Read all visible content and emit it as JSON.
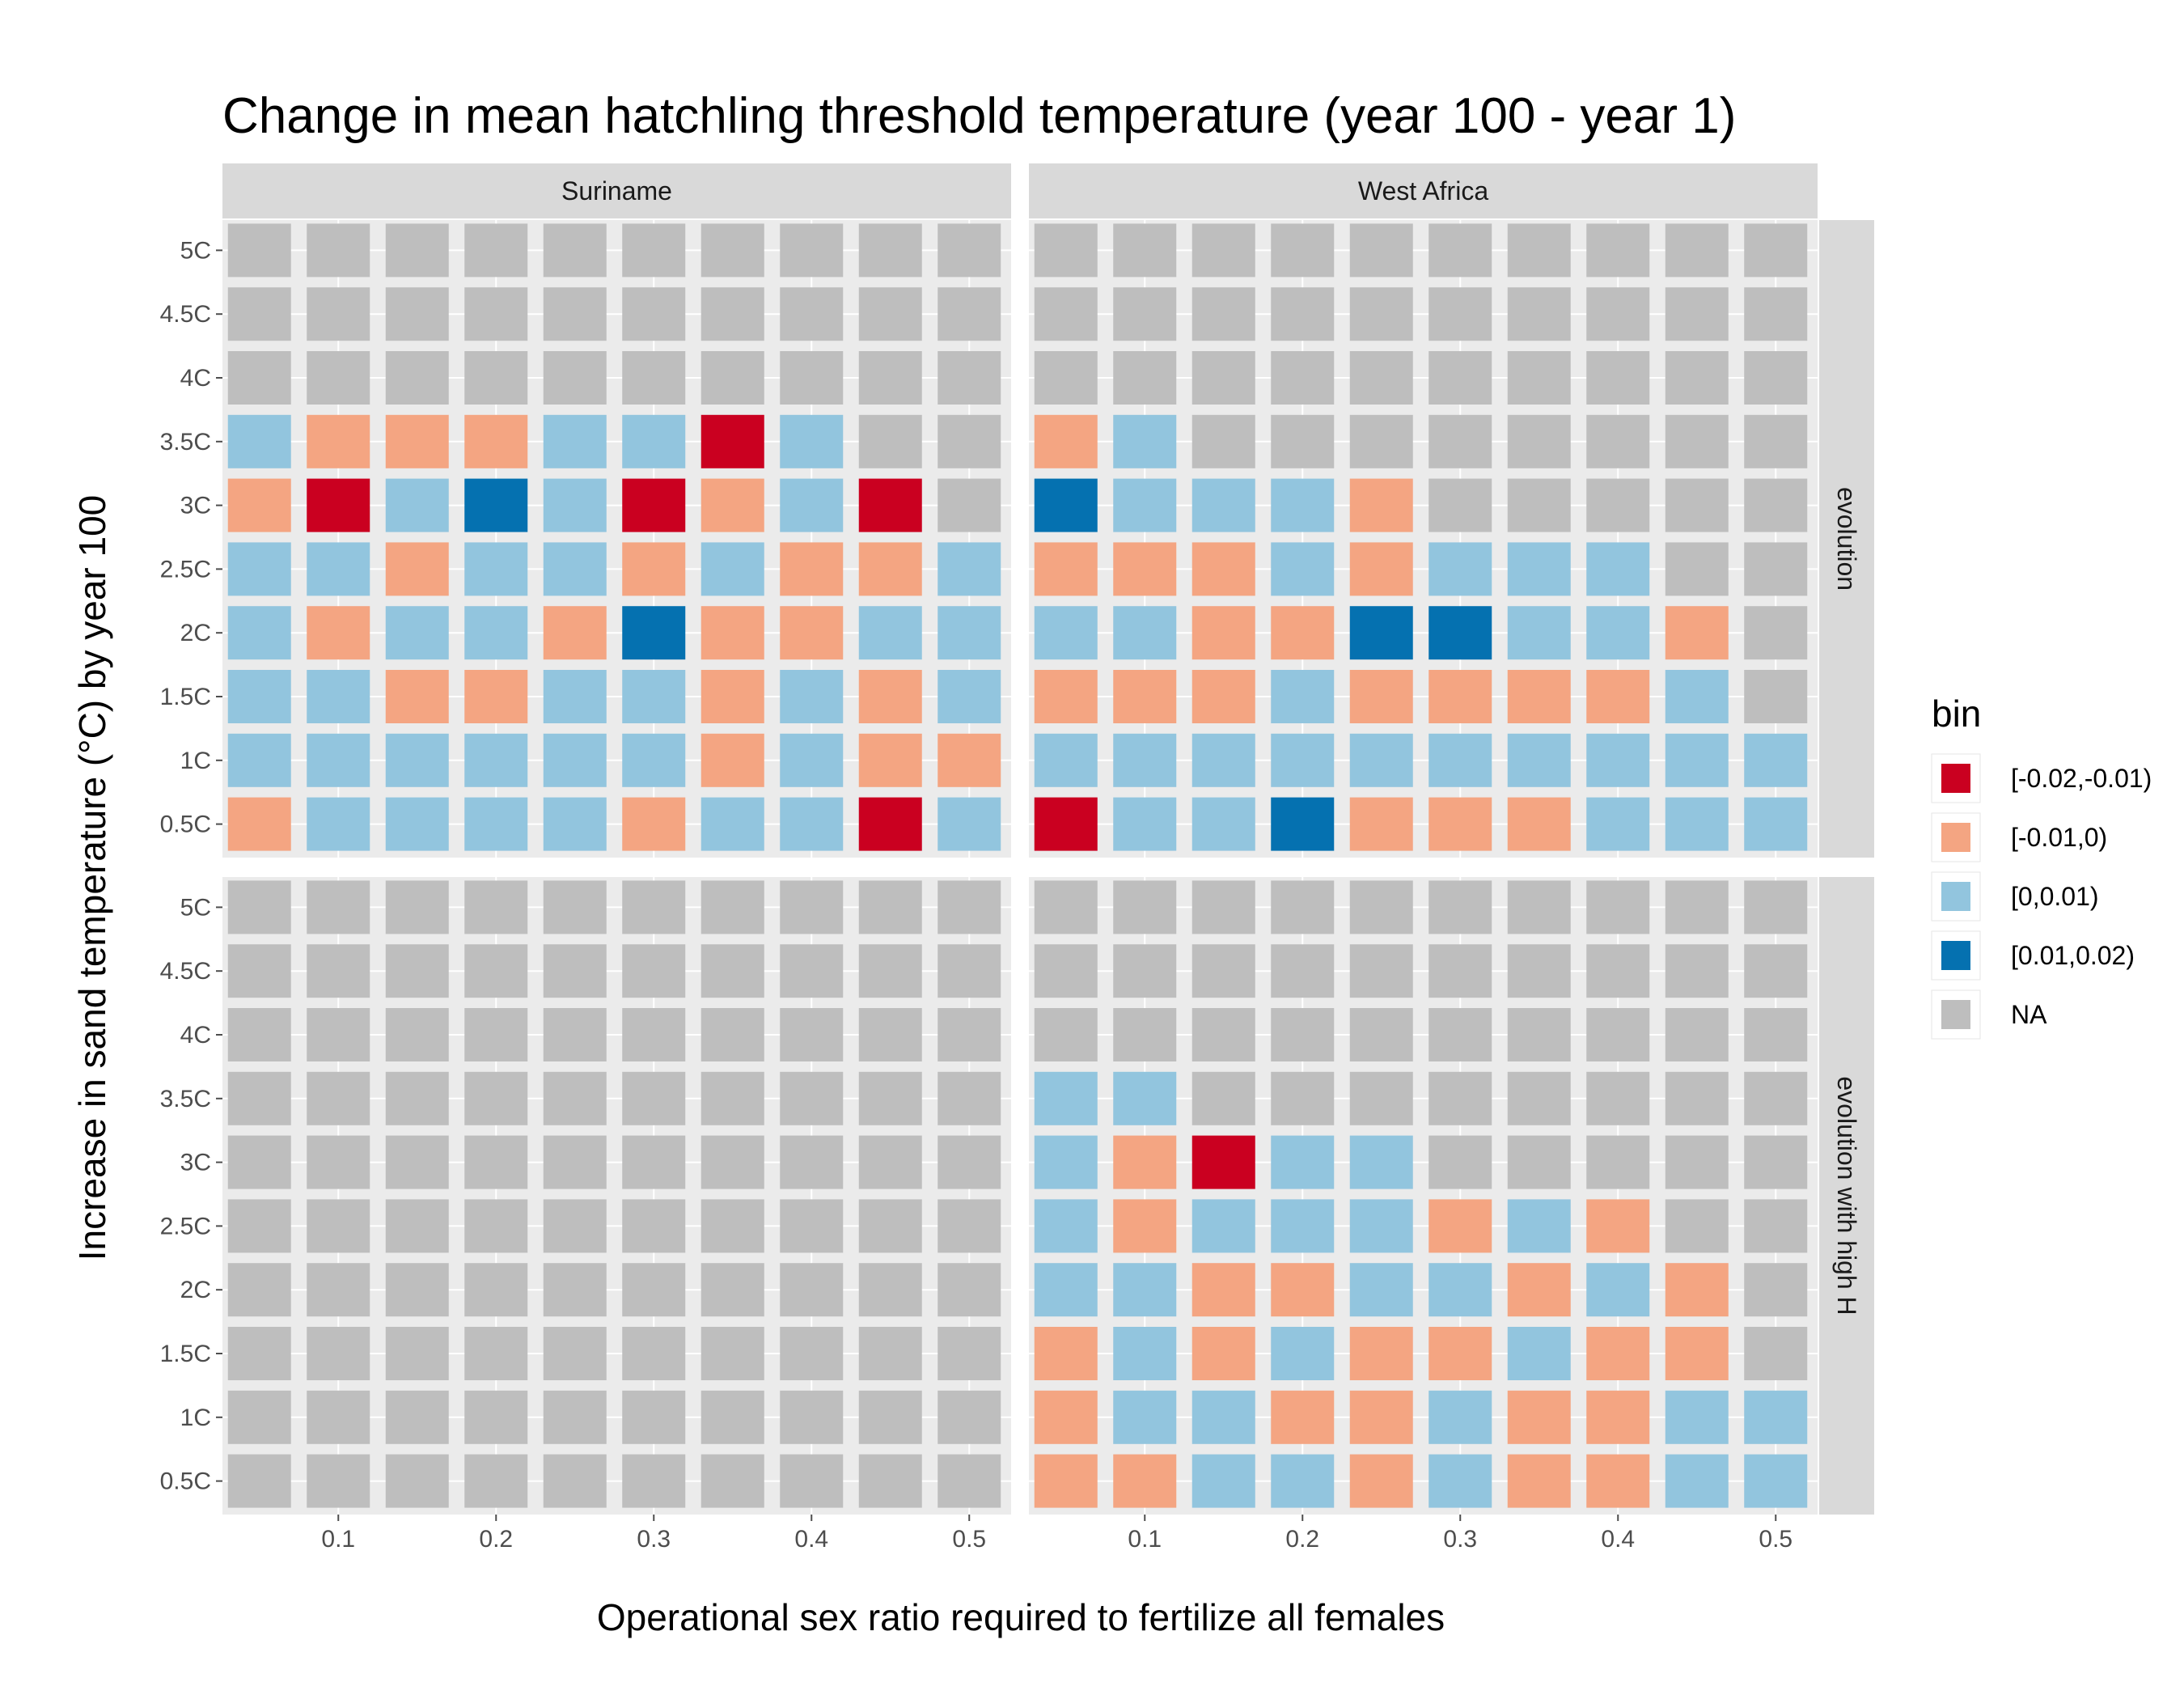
{
  "chart_data": {
    "type": "heatmap",
    "title": "Change in mean hatchling threshold temperature (year 100 - year 1)",
    "xlabel": "Operational sex ratio required to fertilize all females",
    "ylabel": "Increase in sand temperature (°C) by year 100",
    "x": [
      0.05,
      0.1,
      0.15,
      0.2,
      0.25,
      0.3,
      0.35,
      0.4,
      0.45,
      0.5
    ],
    "x_ticks": [
      0.1,
      0.2,
      0.3,
      0.4,
      0.5
    ],
    "x_tick_labels": [
      "0.1",
      "0.2",
      "0.3",
      "0.4",
      "0.5"
    ],
    "y_categories": [
      "0.5C",
      "1C",
      "1.5C",
      "2C",
      "2.5C",
      "3C",
      "3.5C",
      "4C",
      "4.5C",
      "5C"
    ],
    "column_facets": [
      "Suriname",
      "West Africa"
    ],
    "row_facets": [
      "evolution",
      "evolution with high H"
    ],
    "grid": true,
    "legend": {
      "title": "bin",
      "position": "right",
      "entries": [
        {
          "label": "[-0.02,-0.01)",
          "color": "#ca0020"
        },
        {
          "label": "[-0.01,0)",
          "color": "#f4a582"
        },
        {
          "label": "[0,0.01)",
          "color": "#92c5de"
        },
        {
          "label": "[0.01,0.02)",
          "color": "#0571b0"
        },
        {
          "label": "NA",
          "color": "#bebebe"
        }
      ]
    },
    "panels": [
      {
        "column_facet": "Suriname",
        "row_facet": "evolution",
        "rows_top_to_bottom": [
          [
            "NA",
            "NA",
            "NA",
            "NA",
            "NA",
            "NA",
            "NA",
            "NA",
            "NA",
            "NA"
          ],
          [
            "NA",
            "NA",
            "NA",
            "NA",
            "NA",
            "NA",
            "NA",
            "NA",
            "NA",
            "NA"
          ],
          [
            "NA",
            "NA",
            "NA",
            "NA",
            "NA",
            "NA",
            "NA",
            "NA",
            "NA",
            "NA"
          ],
          [
            "[0,0.01)",
            "[-0.01,0)",
            "[-0.01,0)",
            "[-0.01,0)",
            "[0,0.01)",
            "[0,0.01)",
            "[-0.02,-0.01)",
            "[0,0.01)",
            "NA",
            "NA"
          ],
          [
            "[-0.01,0)",
            "[-0.02,-0.01)",
            "[0,0.01)",
            "[0.01,0.02)",
            "[0,0.01)",
            "[-0.02,-0.01)",
            "[-0.01,0)",
            "[0,0.01)",
            "[-0.02,-0.01)",
            "NA"
          ],
          [
            "[0,0.01)",
            "[0,0.01)",
            "[-0.01,0)",
            "[0,0.01)",
            "[0,0.01)",
            "[-0.01,0)",
            "[0,0.01)",
            "[-0.01,0)",
            "[-0.01,0)",
            "[0,0.01)"
          ],
          [
            "[0,0.01)",
            "[-0.01,0)",
            "[0,0.01)",
            "[0,0.01)",
            "[-0.01,0)",
            "[0.01,0.02)",
            "[-0.01,0)",
            "[-0.01,0)",
            "[0,0.01)",
            "[0,0.01)"
          ],
          [
            "[0,0.01)",
            "[0,0.01)",
            "[-0.01,0)",
            "[-0.01,0)",
            "[0,0.01)",
            "[0,0.01)",
            "[-0.01,0)",
            "[0,0.01)",
            "[-0.01,0)",
            "[0,0.01)"
          ],
          [
            "[0,0.01)",
            "[0,0.01)",
            "[0,0.01)",
            "[0,0.01)",
            "[0,0.01)",
            "[0,0.01)",
            "[-0.01,0)",
            "[0,0.01)",
            "[-0.01,0)",
            "[-0.01,0)"
          ],
          [
            "[-0.01,0)",
            "[0,0.01)",
            "[0,0.01)",
            "[0,0.01)",
            "[0,0.01)",
            "[-0.01,0)",
            "[0,0.01)",
            "[0,0.01)",
            "[-0.02,-0.01)",
            "[0,0.01)"
          ]
        ]
      },
      {
        "column_facet": "West Africa",
        "row_facet": "evolution",
        "rows_top_to_bottom": [
          [
            "NA",
            "NA",
            "NA",
            "NA",
            "NA",
            "NA",
            "NA",
            "NA",
            "NA",
            "NA"
          ],
          [
            "NA",
            "NA",
            "NA",
            "NA",
            "NA",
            "NA",
            "NA",
            "NA",
            "NA",
            "NA"
          ],
          [
            "NA",
            "NA",
            "NA",
            "NA",
            "NA",
            "NA",
            "NA",
            "NA",
            "NA",
            "NA"
          ],
          [
            "[-0.01,0)",
            "[0,0.01)",
            "NA",
            "NA",
            "NA",
            "NA",
            "NA",
            "NA",
            "NA",
            "NA"
          ],
          [
            "[0.01,0.02)",
            "[0,0.01)",
            "[0,0.01)",
            "[0,0.01)",
            "[-0.01,0)",
            "NA",
            "NA",
            "NA",
            "NA",
            "NA"
          ],
          [
            "[-0.01,0)",
            "[-0.01,0)",
            "[-0.01,0)",
            "[0,0.01)",
            "[-0.01,0)",
            "[0,0.01)",
            "[0,0.01)",
            "[0,0.01)",
            "NA",
            "NA"
          ],
          [
            "[0,0.01)",
            "[0,0.01)",
            "[-0.01,0)",
            "[-0.01,0)",
            "[0.01,0.02)",
            "[0.01,0.02)",
            "[0,0.01)",
            "[0,0.01)",
            "[-0.01,0)",
            "NA"
          ],
          [
            "[-0.01,0)",
            "[-0.01,0)",
            "[-0.01,0)",
            "[0,0.01)",
            "[-0.01,0)",
            "[-0.01,0)",
            "[-0.01,0)",
            "[-0.01,0)",
            "[0,0.01)",
            "NA"
          ],
          [
            "[0,0.01)",
            "[0,0.01)",
            "[0,0.01)",
            "[0,0.01)",
            "[0,0.01)",
            "[0,0.01)",
            "[0,0.01)",
            "[0,0.01)",
            "[0,0.01)",
            "[0,0.01)"
          ],
          [
            "[-0.02,-0.01)",
            "[0,0.01)",
            "[0,0.01)",
            "[0.01,0.02)",
            "[-0.01,0)",
            "[-0.01,0)",
            "[-0.01,0)",
            "[0,0.01)",
            "[0,0.01)",
            "[0,0.01)"
          ]
        ]
      },
      {
        "column_facet": "Suriname",
        "row_facet": "evolution with high H",
        "rows_top_to_bottom": [
          [
            "NA",
            "NA",
            "NA",
            "NA",
            "NA",
            "NA",
            "NA",
            "NA",
            "NA",
            "NA"
          ],
          [
            "NA",
            "NA",
            "NA",
            "NA",
            "NA",
            "NA",
            "NA",
            "NA",
            "NA",
            "NA"
          ],
          [
            "NA",
            "NA",
            "NA",
            "NA",
            "NA",
            "NA",
            "NA",
            "NA",
            "NA",
            "NA"
          ],
          [
            "NA",
            "NA",
            "NA",
            "NA",
            "NA",
            "NA",
            "NA",
            "NA",
            "NA",
            "NA"
          ],
          [
            "NA",
            "NA",
            "NA",
            "NA",
            "NA",
            "NA",
            "NA",
            "NA",
            "NA",
            "NA"
          ],
          [
            "NA",
            "NA",
            "NA",
            "NA",
            "NA",
            "NA",
            "NA",
            "NA",
            "NA",
            "NA"
          ],
          [
            "NA",
            "NA",
            "NA",
            "NA",
            "NA",
            "NA",
            "NA",
            "NA",
            "NA",
            "NA"
          ],
          [
            "NA",
            "NA",
            "NA",
            "NA",
            "NA",
            "NA",
            "NA",
            "NA",
            "NA",
            "NA"
          ],
          [
            "NA",
            "NA",
            "NA",
            "NA",
            "NA",
            "NA",
            "NA",
            "NA",
            "NA",
            "NA"
          ],
          [
            "NA",
            "NA",
            "NA",
            "NA",
            "NA",
            "NA",
            "NA",
            "NA",
            "NA",
            "NA"
          ]
        ]
      },
      {
        "column_facet": "West Africa",
        "row_facet": "evolution with high H",
        "rows_top_to_bottom": [
          [
            "NA",
            "NA",
            "NA",
            "NA",
            "NA",
            "NA",
            "NA",
            "NA",
            "NA",
            "NA"
          ],
          [
            "NA",
            "NA",
            "NA",
            "NA",
            "NA",
            "NA",
            "NA",
            "NA",
            "NA",
            "NA"
          ],
          [
            "NA",
            "NA",
            "NA",
            "NA",
            "NA",
            "NA",
            "NA",
            "NA",
            "NA",
            "NA"
          ],
          [
            "[0,0.01)",
            "[0,0.01)",
            "NA",
            "NA",
            "NA",
            "NA",
            "NA",
            "NA",
            "NA",
            "NA"
          ],
          [
            "[0,0.01)",
            "[-0.01,0)",
            "[-0.02,-0.01)",
            "[0,0.01)",
            "[0,0.01)",
            "NA",
            "NA",
            "NA",
            "NA",
            "NA"
          ],
          [
            "[0,0.01)",
            "[-0.01,0)",
            "[0,0.01)",
            "[0,0.01)",
            "[0,0.01)",
            "[-0.01,0)",
            "[0,0.01)",
            "[-0.01,0)",
            "NA",
            "NA"
          ],
          [
            "[0,0.01)",
            "[0,0.01)",
            "[-0.01,0)",
            "[-0.01,0)",
            "[0,0.01)",
            "[0,0.01)",
            "[-0.01,0)",
            "[0,0.01)",
            "[-0.01,0)",
            "NA"
          ],
          [
            "[-0.01,0)",
            "[0,0.01)",
            "[-0.01,0)",
            "[0,0.01)",
            "[-0.01,0)",
            "[-0.01,0)",
            "[0,0.01)",
            "[-0.01,0)",
            "[-0.01,0)",
            "NA"
          ],
          [
            "[-0.01,0)",
            "[0,0.01)",
            "[0,0.01)",
            "[-0.01,0)",
            "[-0.01,0)",
            "[0,0.01)",
            "[-0.01,0)",
            "[-0.01,0)",
            "[0,0.01)",
            "[0,0.01)"
          ],
          [
            "[-0.01,0)",
            "[-0.01,0)",
            "[0,0.01)",
            "[0,0.01)",
            "[-0.01,0)",
            "[0,0.01)",
            "[-0.01,0)",
            "[-0.01,0)",
            "[0,0.01)",
            "[0,0.01)"
          ]
        ]
      }
    ],
    "colors": {
      "panel_background": "#ebebeb",
      "grid_line": "#ffffff",
      "strip_background": "#d9d9d9",
      "tick": "#4d4d4d"
    }
  }
}
